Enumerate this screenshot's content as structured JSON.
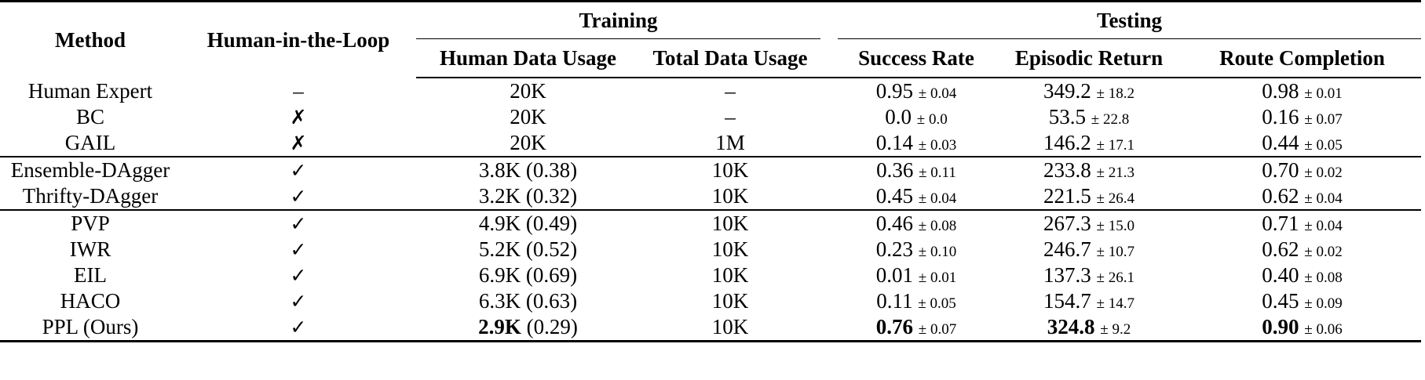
{
  "headers": {
    "method": "Method",
    "hil": "Human-in-the-Loop",
    "training": "Training",
    "testing": "Testing",
    "human_data_usage": "Human Data Usage",
    "total_data_usage": "Total Data Usage",
    "success_rate": "Success Rate",
    "episodic_return": "Episodic Return",
    "route_completion": "Route Completion"
  },
  "rows": [
    {
      "method": "Human Expert",
      "hil": "–",
      "hdu": "20K",
      "tdu": "–",
      "sr": "0.95",
      "sr_std": "± 0.04",
      "er": "349.2",
      "er_std": "± 18.2",
      "rc": "0.98",
      "rc_std": "± 0.01"
    },
    {
      "method": "BC",
      "hil": "✗",
      "hdu": "20K",
      "tdu": "–",
      "sr": "0.0",
      "sr_std": "± 0.0",
      "er": "53.5",
      "er_std": "± 22.8",
      "rc": "0.16",
      "rc_std": "± 0.07"
    },
    {
      "method": "GAIL",
      "hil": "✗",
      "hdu": "20K",
      "tdu": "1M",
      "sr": "0.14",
      "sr_std": "± 0.03",
      "er": "146.2",
      "er_std": "± 17.1",
      "rc": "0.44",
      "rc_std": "± 0.05"
    },
    {
      "method": "Ensemble-DAgger",
      "hil": "✓",
      "hdu": "3.8K (0.38)",
      "tdu": "10K",
      "sr": "0.36",
      "sr_std": "± 0.11",
      "er": "233.8",
      "er_std": "± 21.3",
      "rc": "0.70",
      "rc_std": "± 0.02"
    },
    {
      "method": "Thrifty-DAgger",
      "hil": "✓",
      "hdu": "3.2K (0.32)",
      "tdu": "10K",
      "sr": "0.45",
      "sr_std": "± 0.04",
      "er": "221.5",
      "er_std": "± 26.4",
      "rc": "0.62",
      "rc_std": "± 0.04"
    },
    {
      "method": "PVP",
      "hil": "✓",
      "hdu": "4.9K (0.49)",
      "tdu": "10K",
      "sr": "0.46",
      "sr_std": "± 0.08",
      "er": "267.3",
      "er_std": "± 15.0",
      "rc": "0.71",
      "rc_std": "± 0.04"
    },
    {
      "method": "IWR",
      "hil": "✓",
      "hdu": "5.2K (0.52)",
      "tdu": "10K",
      "sr": "0.23",
      "sr_std": "± 0.10",
      "er": "246.7",
      "er_std": "± 10.7",
      "rc": "0.62",
      "rc_std": "± 0.02"
    },
    {
      "method": "EIL",
      "hil": "✓",
      "hdu": "6.9K (0.69)",
      "tdu": "10K",
      "sr": "0.01",
      "sr_std": "± 0.01",
      "er": "137.3",
      "er_std": "± 26.1",
      "rc": "0.40",
      "rc_std": "± 0.08"
    },
    {
      "method": "HACO",
      "hil": "✓",
      "hdu": "6.3K (0.63)",
      "tdu": "10K",
      "sr": "0.11",
      "sr_std": "± 0.05",
      "er": "154.7",
      "er_std": "± 14.7",
      "rc": "0.45",
      "rc_std": "± 0.09"
    },
    {
      "method": "PPL (Ours)",
      "hil": "✓",
      "hdu_bold": "2.9K",
      "hdu_rest": " (0.29)",
      "tdu": "10K",
      "sr": "0.76",
      "sr_std": "± 0.07",
      "er": "324.8",
      "er_std": "± 9.2",
      "rc": "0.90",
      "rc_std": "± 0.06"
    }
  ]
}
